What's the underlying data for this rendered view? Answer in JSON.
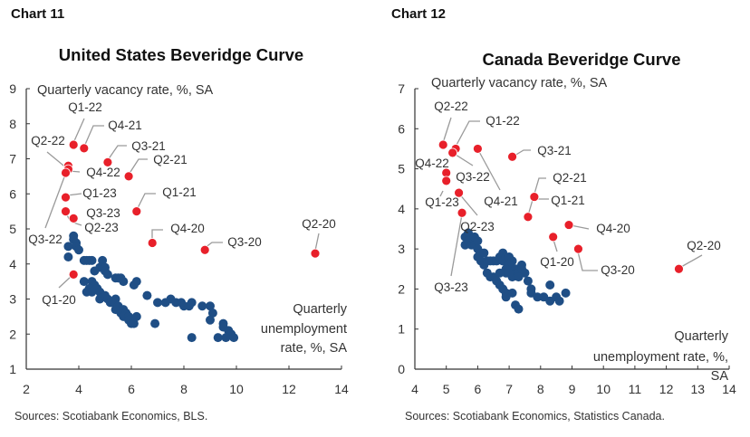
{
  "colors": {
    "recent": "#e8202a",
    "historical": "#1f4e85",
    "axis": "#333333",
    "leader": "#9a9a9a"
  },
  "chart_data": [
    {
      "type": "scatter",
      "header": "Chart 11",
      "title": "United States Beveridge Curve",
      "ylabel": "Quarterly vacancy rate, %, SA",
      "xlabel_lines": [
        "Quarterly",
        "unemployment",
        "rate, %, SA"
      ],
      "source": "Sources: Scotiabank Economics, BLS.",
      "xlim": [
        2,
        14
      ],
      "ylim": [
        1,
        9
      ],
      "xticks": [
        2,
        4,
        6,
        8,
        10,
        12,
        14
      ],
      "yticks": [
        1,
        2,
        3,
        4,
        5,
        6,
        7,
        8,
        9
      ],
      "grid": false,
      "historical": [
        [
          3.8,
          4.8
        ],
        [
          3.8,
          4.7
        ],
        [
          3.9,
          4.6
        ],
        [
          3.6,
          4.5
        ],
        [
          3.9,
          4.5
        ],
        [
          4.0,
          4.4
        ],
        [
          3.6,
          4.2
        ],
        [
          4.2,
          4.1
        ],
        [
          4.3,
          4.1
        ],
        [
          4.4,
          4.1
        ],
        [
          4.5,
          4.1
        ],
        [
          4.9,
          4.1
        ],
        [
          4.8,
          3.9
        ],
        [
          4.9,
          3.9
        ],
        [
          5.0,
          3.9
        ],
        [
          4.6,
          3.8
        ],
        [
          5.0,
          3.8
        ],
        [
          5.1,
          3.7
        ],
        [
          5.4,
          3.6
        ],
        [
          5.5,
          3.6
        ],
        [
          5.6,
          3.6
        ],
        [
          5.7,
          3.5
        ],
        [
          6.2,
          3.5
        ],
        [
          6.1,
          3.4
        ],
        [
          4.2,
          3.5
        ],
        [
          4.5,
          3.5
        ],
        [
          4.6,
          3.4
        ],
        [
          4.4,
          3.3
        ],
        [
          4.7,
          3.3
        ],
        [
          4.5,
          3.2
        ],
        [
          4.3,
          3.2
        ],
        [
          4.8,
          3.2
        ],
        [
          4.8,
          3.0
        ],
        [
          5.0,
          3.1
        ],
        [
          5.1,
          3.0
        ],
        [
          5.4,
          3.0
        ],
        [
          5.2,
          2.9
        ],
        [
          5.3,
          2.9
        ],
        [
          5.5,
          2.8
        ],
        [
          5.4,
          2.7
        ],
        [
          5.7,
          2.7
        ],
        [
          5.6,
          2.6
        ],
        [
          5.8,
          2.6
        ],
        [
          5.7,
          2.5
        ],
        [
          5.9,
          2.5
        ],
        [
          6.2,
          2.5
        ],
        [
          5.9,
          2.4
        ],
        [
          6.0,
          2.3
        ],
        [
          6.1,
          2.3
        ],
        [
          6.6,
          3.1
        ],
        [
          6.9,
          2.3
        ],
        [
          7.0,
          2.9
        ],
        [
          7.3,
          2.9
        ],
        [
          7.5,
          3.0
        ],
        [
          7.7,
          2.9
        ],
        [
          7.9,
          2.9
        ],
        [
          8.0,
          2.8
        ],
        [
          8.2,
          2.8
        ],
        [
          8.3,
          2.9
        ],
        [
          8.7,
          2.8
        ],
        [
          9.0,
          2.8
        ],
        [
          9.1,
          2.6
        ],
        [
          9.0,
          2.4
        ],
        [
          9.5,
          2.3
        ],
        [
          9.5,
          2.2
        ],
        [
          9.7,
          2.1
        ],
        [
          9.8,
          2.0
        ],
        [
          9.9,
          1.9
        ],
        [
          9.6,
          1.9
        ],
        [
          9.3,
          1.9
        ],
        [
          8.3,
          1.9
        ]
      ],
      "labeled": [
        {
          "label": "Q1-20",
          "x": 3.8,
          "y": 3.7
        },
        {
          "label": "Q2-20",
          "x": 13.0,
          "y": 4.3
        },
        {
          "label": "Q3-20",
          "x": 8.8,
          "y": 4.4
        },
        {
          "label": "Q4-20",
          "x": 6.8,
          "y": 4.6
        },
        {
          "label": "Q1-21",
          "x": 6.2,
          "y": 5.5
        },
        {
          "label": "Q2-21",
          "x": 5.9,
          "y": 6.5
        },
        {
          "label": "Q3-21",
          "x": 5.1,
          "y": 6.9
        },
        {
          "label": "Q4-21",
          "x": 4.2,
          "y": 7.3
        },
        {
          "label": "Q1-22",
          "x": 3.8,
          "y": 7.4
        },
        {
          "label": "Q2-22",
          "x": 3.6,
          "y": 6.8
        },
        {
          "label": "Q3-22",
          "x": 3.6,
          "y": 6.7
        },
        {
          "label": "Q4-22",
          "x": 3.5,
          "y": 6.6
        },
        {
          "label": "Q1-23",
          "x": 3.5,
          "y": 5.9
        },
        {
          "label": "Q2-23",
          "x": 3.8,
          "y": 5.3
        },
        {
          "label": "Q3-23",
          "x": 3.5,
          "y": 5.5
        }
      ]
    },
    {
      "type": "scatter",
      "header": "Chart 12",
      "title": "Canada Beveridge Curve",
      "ylabel": "Quarterly vacancy rate, %, SA",
      "xlabel_lines": [
        "Quarterly",
        "unemployment rate, %,",
        "SA"
      ],
      "source": "Sources: Scotiabank Economics, Statistics Canada.",
      "xlim": [
        4,
        14
      ],
      "ylim": [
        0,
        7
      ],
      "xticks": [
        4,
        5,
        6,
        7,
        8,
        9,
        10,
        11,
        12,
        13,
        14
      ],
      "yticks": [
        0,
        1,
        2,
        3,
        4,
        5,
        6,
        7
      ],
      "grid": false,
      "historical": [
        [
          5.6,
          3.3
        ],
        [
          5.7,
          3.4
        ],
        [
          5.6,
          3.1
        ],
        [
          5.7,
          3.2
        ],
        [
          5.8,
          3.1
        ],
        [
          5.9,
          3.3
        ],
        [
          5.9,
          3.1
        ],
        [
          6.0,
          3.2
        ],
        [
          6.0,
          3.0
        ],
        [
          6.1,
          2.9
        ],
        [
          6.0,
          2.8
        ],
        [
          6.2,
          2.9
        ],
        [
          6.1,
          2.7
        ],
        [
          6.2,
          2.6
        ],
        [
          6.3,
          2.7
        ],
        [
          6.4,
          2.7
        ],
        [
          6.5,
          2.7
        ],
        [
          6.6,
          2.7
        ],
        [
          6.7,
          2.8
        ],
        [
          6.8,
          2.9
        ],
        [
          6.8,
          2.7
        ],
        [
          6.9,
          2.8
        ],
        [
          7.0,
          2.8
        ],
        [
          7.1,
          2.7
        ],
        [
          7.0,
          2.6
        ],
        [
          7.2,
          2.5
        ],
        [
          6.9,
          2.5
        ],
        [
          6.9,
          2.4
        ],
        [
          7.1,
          2.3
        ],
        [
          7.3,
          2.4
        ],
        [
          7.4,
          2.6
        ],
        [
          7.4,
          2.5
        ],
        [
          7.5,
          2.4
        ],
        [
          7.3,
          2.3
        ],
        [
          7.6,
          2.2
        ],
        [
          7.7,
          2.0
        ],
        [
          7.7,
          1.9
        ],
        [
          7.9,
          1.8
        ],
        [
          8.1,
          1.8
        ],
        [
          8.3,
          1.7
        ],
        [
          8.3,
          2.1
        ],
        [
          8.5,
          1.8
        ],
        [
          8.6,
          1.7
        ],
        [
          8.8,
          1.9
        ],
        [
          6.3,
          2.4
        ],
        [
          6.4,
          2.3
        ],
        [
          6.5,
          2.3
        ],
        [
          6.6,
          2.2
        ],
        [
          6.7,
          2.1
        ],
        [
          6.8,
          2.0
        ],
        [
          6.9,
          1.9
        ],
        [
          7.1,
          1.9
        ],
        [
          6.9,
          1.8
        ],
        [
          7.2,
          1.6
        ],
        [
          7.3,
          1.5
        ],
        [
          6.7,
          2.4
        ],
        [
          7.0,
          2.4
        ]
      ],
      "labeled": [
        {
          "label": "Q1-20",
          "x": 8.4,
          "y": 3.3
        },
        {
          "label": "Q2-20",
          "x": 12.4,
          "y": 2.5
        },
        {
          "label": "Q3-20",
          "x": 9.2,
          "y": 3.0
        },
        {
          "label": "Q4-20",
          "x": 8.9,
          "y": 3.6
        },
        {
          "label": "Q1-21",
          "x": 7.6,
          "y": 3.8
        },
        {
          "label": "Q2-21",
          "x": 7.8,
          "y": 4.3
        },
        {
          "label": "Q3-21",
          "x": 7.1,
          "y": 5.3
        },
        {
          "label": "Q4-21",
          "x": 6.0,
          "y": 5.5
        },
        {
          "label": "Q1-22",
          "x": 5.3,
          "y": 5.5
        },
        {
          "label": "Q2-22",
          "x": 4.9,
          "y": 5.6
        },
        {
          "label": "Q3-22",
          "x": 5.2,
          "y": 5.4
        },
        {
          "label": "Q4-22",
          "x": 5.0,
          "y": 4.9
        },
        {
          "label": "Q1-23",
          "x": 5.0,
          "y": 4.7
        },
        {
          "label": "Q2-23",
          "x": 5.4,
          "y": 4.4
        },
        {
          "label": "Q3-23",
          "x": 5.5,
          "y": 3.9
        }
      ]
    }
  ]
}
